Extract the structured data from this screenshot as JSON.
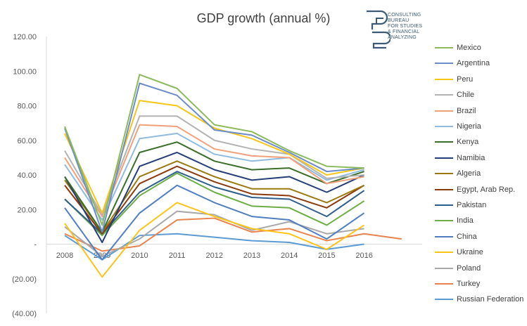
{
  "chart_data": {
    "type": "line",
    "title": "GDP growth (annual %)",
    "xlabel": "",
    "ylabel": "",
    "x": [
      "2008",
      "2009",
      "2010",
      "2011",
      "2012",
      "2013",
      "2014",
      "2015",
      "2016"
    ],
    "y_tick_labels": [
      "120.00",
      "100.00",
      "80.00",
      "60.00",
      "40.00",
      "20.00",
      "-",
      "(20.00)",
      "(40.00)"
    ],
    "y_ticks": [
      120,
      100,
      80,
      60,
      40,
      20,
      0,
      -20,
      -40
    ],
    "ylim": [
      -40,
      120
    ],
    "grid": false,
    "legend_position": "right",
    "series": [
      {
        "name": "Mexico",
        "color": "#8cba5b",
        "values": [
          68,
          11,
          98,
          90,
          69,
          65,
          54,
          45,
          44
        ]
      },
      {
        "name": "Argentina",
        "color": "#6b8cc9",
        "values": [
          67,
          7,
          93,
          86,
          66,
          63,
          53,
          42,
          44
        ]
      },
      {
        "name": "Peru",
        "color": "#f5c518",
        "values": [
          64,
          18,
          83,
          80,
          67,
          61,
          52,
          40,
          44
        ]
      },
      {
        "name": "Chile",
        "color": "#b3b3b3",
        "values": [
          54,
          17,
          74,
          74,
          60,
          55,
          52,
          38,
          40
        ]
      },
      {
        "name": "Brazil",
        "color": "#f0a07a",
        "values": [
          50,
          16,
          69,
          68,
          55,
          51,
          50,
          35,
          39
        ]
      },
      {
        "name": "Nigeria",
        "color": "#8fbbe0",
        "values": [
          46,
          14,
          61,
          64,
          52,
          48,
          50,
          37,
          43
        ]
      },
      {
        "name": "Kenya",
        "color": "#3a6e2a",
        "values": [
          39,
          7,
          53,
          59,
          48,
          43,
          44,
          35,
          42
        ]
      },
      {
        "name": "Namibia",
        "color": "#233e78",
        "values": [
          39,
          1,
          45,
          53,
          43,
          37,
          39,
          30,
          40
        ]
      },
      {
        "name": "Algeria",
        "color": "#9a7a10",
        "values": [
          37,
          7,
          39,
          48,
          39,
          32,
          32,
          24,
          34
        ]
      },
      {
        "name": "Egypt, Arab Rep.",
        "color": "#8b3a0e",
        "values": [
          34,
          6,
          35,
          45,
          36,
          29,
          28,
          21,
          34
        ]
      },
      {
        "name": "Pakistan",
        "color": "#2f5e8c",
        "values": [
          26,
          6,
          30,
          42,
          33,
          27,
          26,
          16,
          31
        ]
      },
      {
        "name": "India",
        "color": "#6cae45",
        "values": [
          26,
          5,
          28,
          41,
          30,
          22,
          21,
          11,
          25
        ]
      },
      {
        "name": "China",
        "color": "#4f7ec1",
        "values": [
          21,
          -9,
          18,
          34,
          24,
          16,
          14,
          3,
          18
        ]
      },
      {
        "name": "Ukraine",
        "color": "#fcc419",
        "values": [
          12,
          -19,
          8,
          24,
          16,
          9,
          6,
          -3,
          11
        ]
      },
      {
        "name": "Poland",
        "color": "#a8a8a8",
        "values": [
          10,
          -7,
          3,
          19,
          17,
          8,
          13,
          6,
          9
        ]
      },
      {
        "name": "Turkey",
        "color": "#e8834e",
        "values": [
          6,
          -4,
          -1,
          14,
          15,
          7,
          9,
          2,
          6
        ]
      },
      {
        "name": "Russian Federation",
        "color": "#5b9bd5",
        "values": [
          5,
          -9,
          5,
          6,
          4,
          2,
          1,
          -3,
          0
        ]
      }
    ],
    "extra_points": {
      "Turkey": {
        "x_label": "",
        "value": 3
      }
    }
  },
  "logo": {
    "lines": [
      "CONSULTING",
      "BUREAU",
      "FOR STUDIES",
      "& FINANCIAL",
      "ANALYZING"
    ],
    "color": "#3a5a75"
  }
}
